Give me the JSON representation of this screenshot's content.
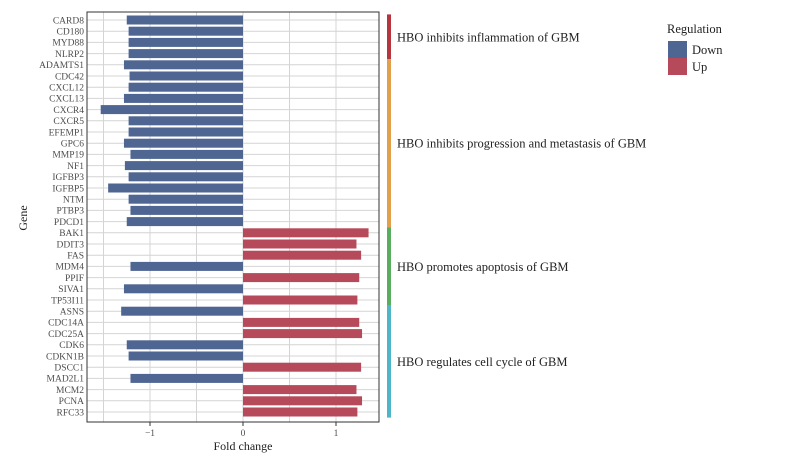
{
  "chart_data": {
    "type": "bar",
    "orientation": "horizontal",
    "xlabel": "Fold change",
    "ylabel": "Gene",
    "xlim": [
      -1.6,
      1.5
    ],
    "x_ticks": [
      -1,
      0,
      1
    ],
    "x_tick_labels": [
      "−1",
      "0",
      "1"
    ],
    "grid": true,
    "categories": [
      "CARD8",
      "CD180",
      "MYD88",
      "NLRP2",
      "ADAMTS1",
      "CDC42",
      "CXCL12",
      "CXCL13",
      "CXCR4",
      "CXCR5",
      "EFEMP1",
      "GPC6",
      "MMP19",
      "NF1",
      "IGFBP3",
      "IGFBP5",
      "NTM",
      "PTBP3",
      "PDCD1",
      "BAK1",
      "DDIT3",
      "FAS",
      "MDM4",
      "PPIF",
      "SIVA1",
      "TP53I11",
      "ASNS",
      "CDC14A",
      "CDC25A",
      "CDK6",
      "CDKN1B",
      "DSCC1",
      "MAD2L1",
      "MCM2",
      "PCNA",
      "RFC33"
    ],
    "values": [
      -1.25,
      -1.23,
      -1.23,
      -1.23,
      -1.28,
      -1.22,
      -1.23,
      -1.28,
      -1.53,
      -1.23,
      -1.23,
      -1.28,
      -1.21,
      -1.27,
      -1.23,
      -1.45,
      -1.23,
      -1.21,
      -1.25,
      1.35,
      1.22,
      1.27,
      -1.21,
      1.25,
      -1.28,
      1.23,
      -1.31,
      1.25,
      1.28,
      -1.25,
      -1.23,
      1.27,
      -1.21,
      1.22,
      1.28,
      1.23
    ],
    "regulation": [
      "Down",
      "Down",
      "Down",
      "Down",
      "Down",
      "Down",
      "Down",
      "Down",
      "Down",
      "Down",
      "Down",
      "Down",
      "Down",
      "Down",
      "Down",
      "Down",
      "Down",
      "Down",
      "Down",
      "Up",
      "Up",
      "Up",
      "Down",
      "Up",
      "Down",
      "Up",
      "Down",
      "Up",
      "Up",
      "Down",
      "Down",
      "Up",
      "Down",
      "Up",
      "Up",
      "Up"
    ],
    "legend": {
      "title": "Regulation",
      "placement": "top-right",
      "entries": [
        {
          "label": "Down",
          "color": "#4f6592"
        },
        {
          "label": "Up",
          "color": "#b74a5a"
        }
      ]
    },
    "groups": [
      {
        "label": "HBO inhibits inflammation of GBM",
        "start": 0,
        "end": 3,
        "color": "#b5363f"
      },
      {
        "label": "HBO inhibits progression and metastasis of GBM",
        "start": 4,
        "end": 18,
        "color": "#e2a04a"
      },
      {
        "label": "HBO promotes apoptosis of GBM",
        "start": 19,
        "end": 25,
        "color": "#58ad5f"
      },
      {
        "label": "HBO regulates cell cycle of GBM",
        "start": 26,
        "end": 35,
        "color": "#4fb5c8"
      }
    ]
  },
  "colors": {
    "down": "#4f6592",
    "up": "#b74a5a",
    "grid": "#d4d4d4",
    "panel_border": "#333333"
  }
}
